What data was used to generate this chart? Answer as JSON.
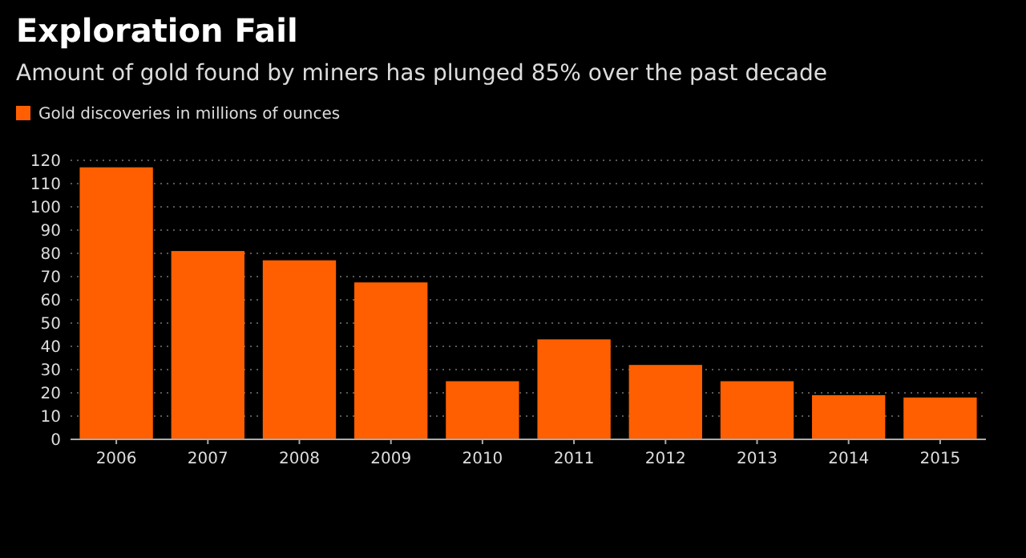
{
  "chart_data": {
    "type": "bar",
    "title": "Exploration Fail",
    "subtitle": "Amount of gold found by miners has plunged 85% over the past decade",
    "categories": [
      "2006",
      "2007",
      "2008",
      "2009",
      "2010",
      "2011",
      "2012",
      "2013",
      "2014",
      "2015"
    ],
    "series": [
      {
        "name": "Gold discoveries in millions of ounces",
        "color": "#ff5f00",
        "values": [
          117,
          81,
          77,
          67.5,
          25,
          43,
          32,
          25,
          19,
          18
        ]
      }
    ],
    "ylim": [
      0,
      120
    ],
    "yticks": [
      0,
      10,
      20,
      30,
      40,
      50,
      60,
      70,
      80,
      90,
      100,
      110,
      120
    ],
    "grid": "y",
    "legend": "top left"
  }
}
